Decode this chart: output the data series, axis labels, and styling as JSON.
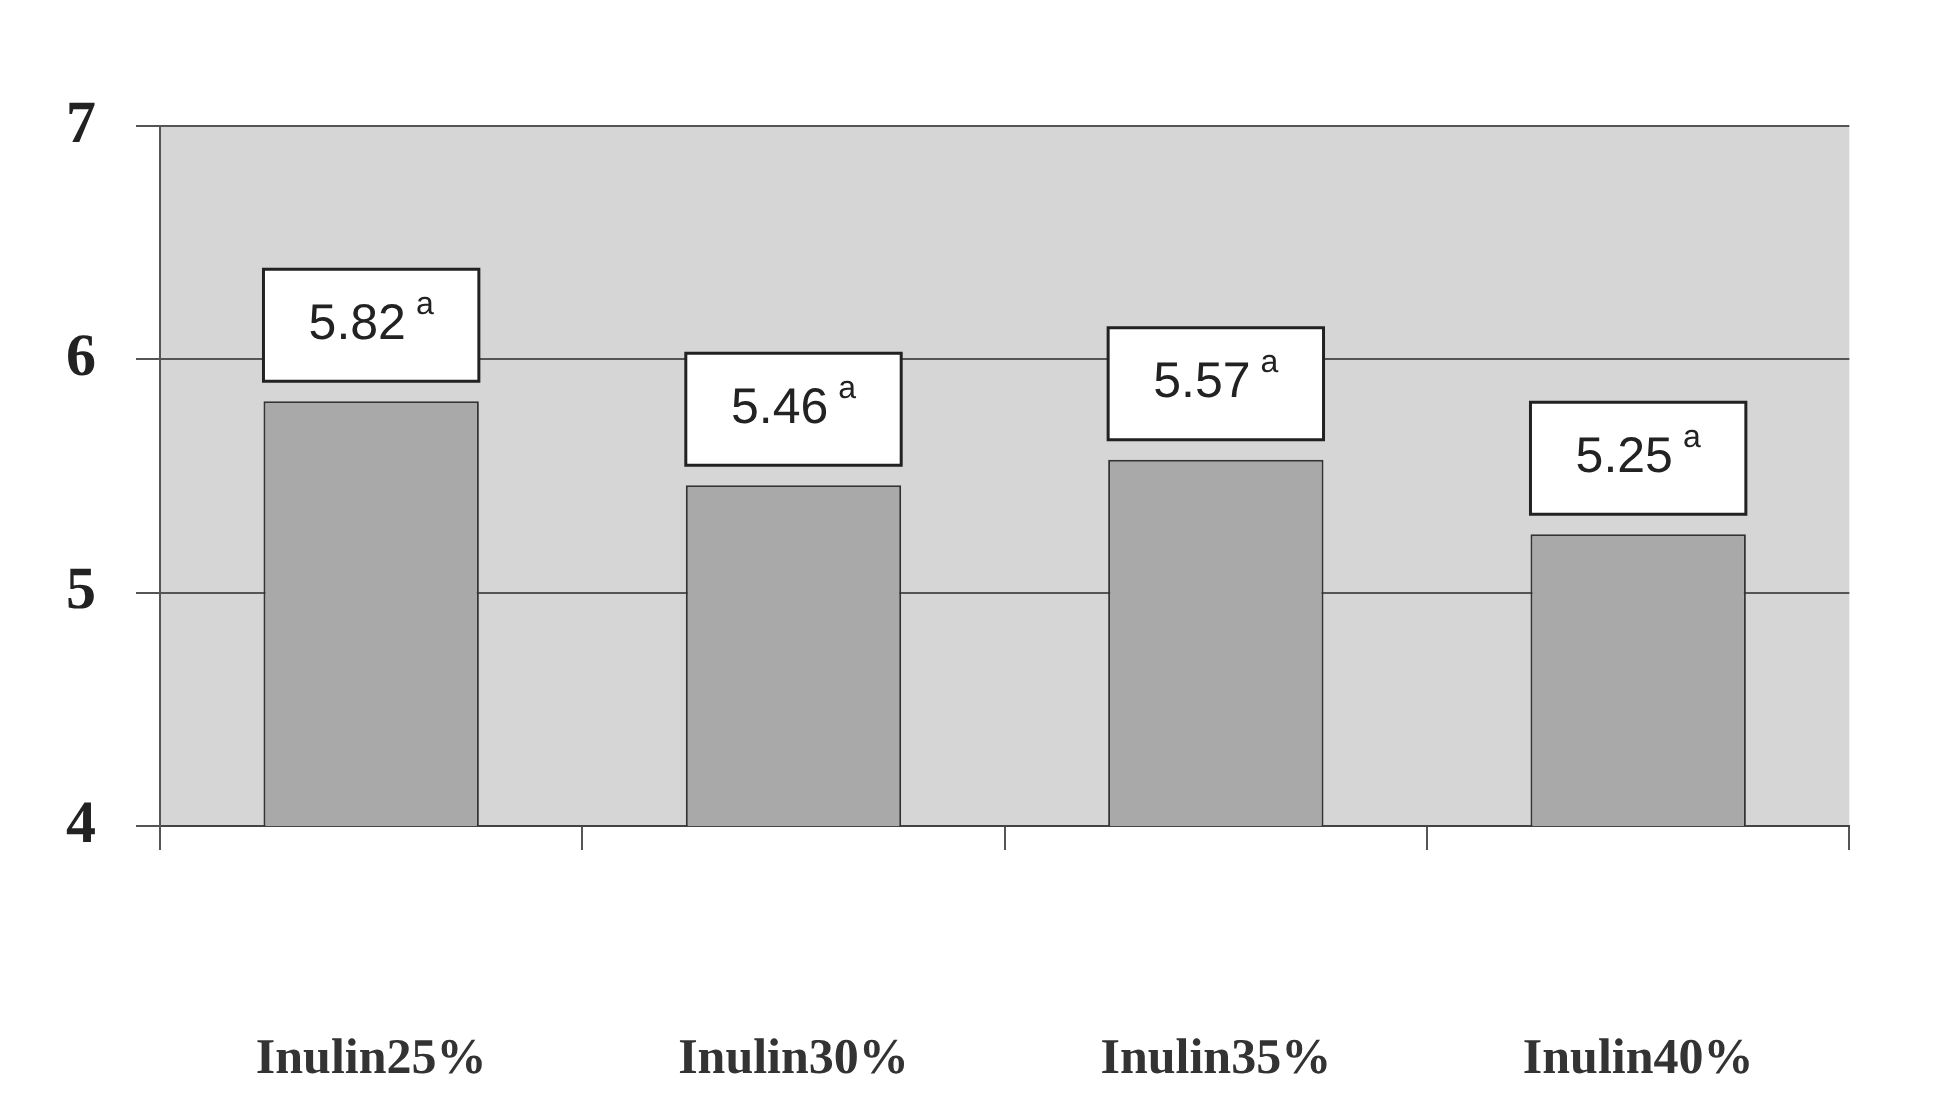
{
  "chart_data": {
    "type": "bar",
    "categories": [
      "Inulin25%",
      "Inulin30%",
      "Inulin35%",
      "Inulin40%"
    ],
    "values": [
      5.82,
      5.46,
      5.57,
      5.25
    ],
    "color": "#a9a9a9",
    "value_labels": [
      "5.82$^{a}$",
      "5.46$^{a}$",
      "5.57$^{a}$",
      "5.25$^{a}$"
    ],
    "ylim": [
      4,
      7
    ],
    "yticks": [
      4,
      5,
      6,
      7
    ],
    "grid": "y"
  }
}
